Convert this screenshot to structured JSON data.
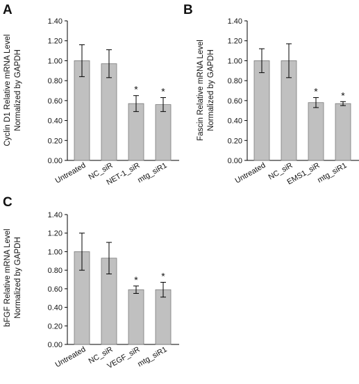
{
  "chart_data": [
    {
      "panel": "A",
      "type": "bar",
      "categories": [
        "Untreated",
        "NC_siR",
        "NET-1_siR",
        "mtg_siR1"
      ],
      "values": [
        1.0,
        0.97,
        0.57,
        0.56
      ],
      "errors": [
        0.16,
        0.14,
        0.08,
        0.07
      ],
      "significance": [
        "",
        "",
        "*",
        "*"
      ],
      "ylabel_lines": [
        "Cyclin D1 Relative mRNA Level",
        "Normalized  by GAPDH"
      ],
      "ylim": [
        0,
        1.4
      ],
      "yticks": [
        "0.00",
        "0.20",
        "0.40",
        "0.60",
        "0.80",
        "1.00",
        "1.20",
        "1.40"
      ],
      "bar_color": "#c0c0c0",
      "grid": false
    },
    {
      "panel": "B",
      "type": "bar",
      "categories": [
        "Untreated",
        "NC_siR",
        "EMS1_siR",
        "mtg_siR1"
      ],
      "values": [
        1.0,
        1.0,
        0.58,
        0.57
      ],
      "errors": [
        0.12,
        0.17,
        0.05,
        0.02
      ],
      "significance": [
        "",
        "",
        "*",
        "*"
      ],
      "ylabel_lines": [
        "Fascin Relative mRNA Level",
        "Normalized  by GAPDH"
      ],
      "ylim": [
        0,
        1.4
      ],
      "yticks": [
        "0.00",
        "0.20",
        "0.40",
        "0.60",
        "0.80",
        "1.00",
        "1.20",
        "1.40"
      ],
      "bar_color": "#c0c0c0",
      "grid": false
    },
    {
      "panel": "C",
      "type": "bar",
      "categories": [
        "Untreated",
        "NC_siR",
        "VEGF_siR",
        "mtg_siR1"
      ],
      "values": [
        1.0,
        0.93,
        0.59,
        0.59
      ],
      "errors": [
        0.2,
        0.17,
        0.04,
        0.08
      ],
      "significance": [
        "",
        "",
        "*",
        "*"
      ],
      "ylabel_lines": [
        "bFGF Relative mRNA Level",
        "Normalized  by GAPDH"
      ],
      "ylim": [
        0,
        1.4
      ],
      "yticks": [
        "0.00",
        "0.20",
        "0.40",
        "0.60",
        "0.80",
        "1.00",
        "1.20",
        "1.40"
      ],
      "bar_color": "#c0c0c0",
      "grid": false
    }
  ]
}
